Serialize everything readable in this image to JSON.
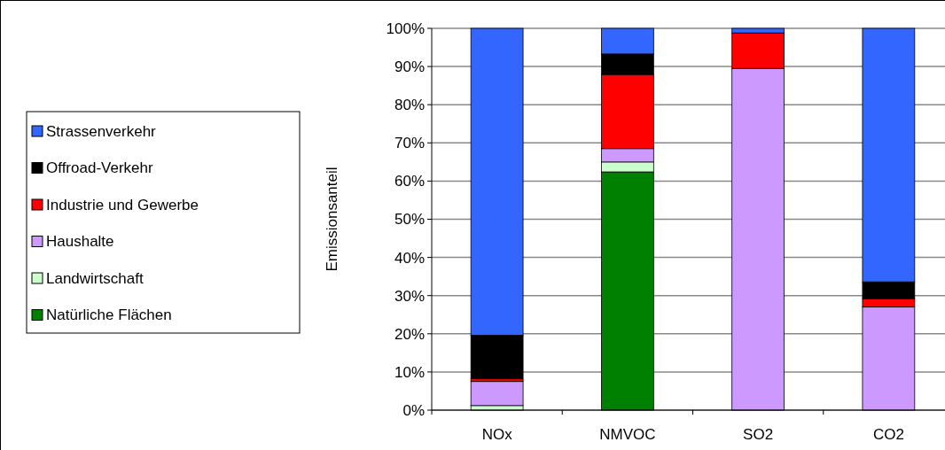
{
  "chart_data": {
    "type": "bar",
    "stacked": true,
    "ylabel": "Emissionsanteil",
    "categories": [
      "NOx",
      "NMVOC",
      "SO2",
      "CO2"
    ],
    "series": [
      {
        "name": "Natürliche Flächen",
        "color": "#008000",
        "values": [
          0,
          62.4,
          0,
          0
        ]
      },
      {
        "name": "Landwirtschaft",
        "color": "#ccffcc",
        "values": [
          1.2,
          2.6,
          0,
          0
        ]
      },
      {
        "name": "Haushalte",
        "color": "#cc99ff",
        "values": [
          6.3,
          3.5,
          89.5,
          27.0
        ]
      },
      {
        "name": "Industrie und Gewerbe",
        "color": "#ff0000",
        "values": [
          0.7,
          19.4,
          9.3,
          2.2
        ]
      },
      {
        "name": "Offroad-Verkehr",
        "color": "#000000",
        "values": [
          11.4,
          5.4,
          0,
          4.4
        ]
      },
      {
        "name": "Strassenverkehr",
        "color": "#3366ff",
        "values": [
          80.4,
          6.7,
          1.2,
          66.4
        ]
      }
    ],
    "ylim": [
      0,
      100
    ],
    "yticks": [
      {
        "value": 0,
        "label": "0%"
      },
      {
        "value": 10,
        "label": "10%"
      },
      {
        "value": 20,
        "label": "20%"
      },
      {
        "value": 30,
        "label": "30%"
      },
      {
        "value": 40,
        "label": "40%"
      },
      {
        "value": 50,
        "label": "50%"
      },
      {
        "value": 60,
        "label": "60%"
      },
      {
        "value": 70,
        "label": "70%"
      },
      {
        "value": 80,
        "label": "80%"
      },
      {
        "value": 90,
        "label": "90%"
      },
      {
        "value": 100,
        "label": "100%"
      }
    ],
    "grid": "y",
    "legend": "left"
  }
}
